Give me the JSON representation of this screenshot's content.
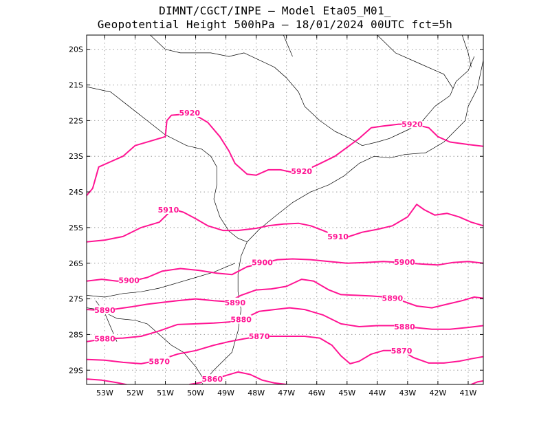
{
  "title_line1": "DIMNT/CGCT/INPE –  Model Eta05_M01_",
  "title_line2": "Geopotential Height 500hPa –  18/01/2024 00UTC fct=5h",
  "colors": {
    "contour": "#ff1493",
    "frame": "#000000",
    "grid": "#9a9a9a",
    "coast": "#000000"
  },
  "map": {
    "lon_range": [
      -53.6,
      -40.5
    ],
    "lat_range": [
      -29.4,
      -19.6
    ],
    "lat_ticks": [
      {
        "value": -20,
        "label": "20S"
      },
      {
        "value": -21,
        "label": "21S"
      },
      {
        "value": -22,
        "label": "22S"
      },
      {
        "value": -23,
        "label": "23S"
      },
      {
        "value": -24,
        "label": "24S"
      },
      {
        "value": -25,
        "label": "25S"
      },
      {
        "value": -26,
        "label": "26S"
      },
      {
        "value": -27,
        "label": "27S"
      },
      {
        "value": -28,
        "label": "28S"
      },
      {
        "value": -29,
        "label": "29S"
      }
    ],
    "lon_ticks": [
      {
        "value": -53,
        "label": "53W"
      },
      {
        "value": -52,
        "label": "52W"
      },
      {
        "value": -51,
        "label": "51W"
      },
      {
        "value": -50,
        "label": "50W"
      },
      {
        "value": -49,
        "label": "49W"
      },
      {
        "value": -48,
        "label": "48W"
      },
      {
        "value": -47,
        "label": "47W"
      },
      {
        "value": -46,
        "label": "46W"
      },
      {
        "value": -45,
        "label": "45W"
      },
      {
        "value": -44,
        "label": "44W"
      },
      {
        "value": -43,
        "label": "43W"
      },
      {
        "value": -42,
        "label": "42W"
      },
      {
        "value": -41,
        "label": "41W"
      }
    ],
    "grid": true
  },
  "contours": [
    {
      "level": 5920,
      "points": [
        [
          -53.6,
          -24.1
        ],
        [
          -53.4,
          -23.9
        ],
        [
          -53.2,
          -23.3
        ],
        [
          -52.8,
          -23.15
        ],
        [
          -52.4,
          -23.0
        ],
        [
          -52.0,
          -22.7
        ],
        [
          -51.4,
          -22.55
        ],
        [
          -51.0,
          -22.45
        ],
        [
          -50.95,
          -22.0
        ],
        [
          -50.8,
          -21.85
        ],
        [
          -50.4,
          -21.82
        ],
        [
          -50.0,
          -21.85
        ],
        [
          -49.6,
          -22.05
        ],
        [
          -49.2,
          -22.45
        ],
        [
          -48.9,
          -22.85
        ],
        [
          -48.7,
          -23.2
        ],
        [
          -48.3,
          -23.5
        ],
        [
          -48.0,
          -23.53
        ],
        [
          -47.6,
          -23.38
        ],
        [
          -47.2,
          -23.38
        ],
        [
          -46.8,
          -23.45
        ],
        [
          -46.4,
          -23.4
        ],
        [
          -46.0,
          -23.25
        ],
        [
          -45.4,
          -23.0
        ],
        [
          -45.0,
          -22.75
        ],
        [
          -44.6,
          -22.5
        ],
        [
          -44.2,
          -22.2
        ],
        [
          -43.8,
          -22.15
        ],
        [
          -43.3,
          -22.1
        ],
        [
          -42.8,
          -22.1
        ],
        [
          -42.3,
          -22.2
        ],
        [
          -42.0,
          -22.45
        ],
        [
          -41.6,
          -22.6
        ],
        [
          -41.0,
          -22.67
        ],
        [
          -40.5,
          -22.72
        ]
      ],
      "labels": [
        {
          "text": "5920",
          "lon": -50.2,
          "lat": -21.78
        },
        {
          "text": "5920",
          "lon": -46.5,
          "lat": -23.42
        },
        {
          "text": "5920",
          "lon": -42.85,
          "lat": -22.1
        }
      ]
    },
    {
      "level": 5910,
      "points": [
        [
          -53.6,
          -25.4
        ],
        [
          -53.0,
          -25.35
        ],
        [
          -52.4,
          -25.25
        ],
        [
          -51.8,
          -25.0
        ],
        [
          -51.2,
          -24.85
        ],
        [
          -50.9,
          -24.6
        ],
        [
          -50.7,
          -24.5
        ],
        [
          -50.4,
          -24.57
        ],
        [
          -50.0,
          -24.75
        ],
        [
          -49.6,
          -24.95
        ],
        [
          -49.1,
          -25.08
        ],
        [
          -48.6,
          -25.08
        ],
        [
          -48.0,
          -25.02
        ],
        [
          -47.6,
          -24.95
        ],
        [
          -47.1,
          -24.9
        ],
        [
          -46.6,
          -24.88
        ],
        [
          -46.2,
          -24.95
        ],
        [
          -45.8,
          -25.08
        ],
        [
          -45.4,
          -25.22
        ],
        [
          -45.0,
          -25.27
        ],
        [
          -44.5,
          -25.13
        ],
        [
          -44.0,
          -25.05
        ],
        [
          -43.5,
          -24.95
        ],
        [
          -43.0,
          -24.7
        ],
        [
          -42.7,
          -24.35
        ],
        [
          -42.45,
          -24.5
        ],
        [
          -42.1,
          -24.65
        ],
        [
          -41.7,
          -24.6
        ],
        [
          -41.3,
          -24.7
        ],
        [
          -40.9,
          -24.85
        ],
        [
          -40.5,
          -24.95
        ]
      ],
      "labels": [
        {
          "text": "5910",
          "lon": -50.9,
          "lat": -24.5
        },
        {
          "text": "5910",
          "lon": -45.3,
          "lat": -25.25
        }
      ]
    },
    {
      "level": 5900,
      "points": [
        [
          -53.6,
          -26.5
        ],
        [
          -53.1,
          -26.45
        ],
        [
          -52.6,
          -26.5
        ],
        [
          -52.1,
          -26.5
        ],
        [
          -51.6,
          -26.4
        ],
        [
          -51.1,
          -26.22
        ],
        [
          -50.5,
          -26.15
        ],
        [
          -49.9,
          -26.2
        ],
        [
          -49.3,
          -26.28
        ],
        [
          -48.8,
          -26.32
        ],
        [
          -48.3,
          -26.1
        ],
        [
          -47.8,
          -26.0
        ],
        [
          -47.3,
          -25.9
        ],
        [
          -46.8,
          -25.88
        ],
        [
          -46.2,
          -25.9
        ],
        [
          -45.6,
          -25.95
        ],
        [
          -45.0,
          -26.0
        ],
        [
          -44.4,
          -25.98
        ],
        [
          -43.8,
          -25.95
        ],
        [
          -43.2,
          -25.98
        ],
        [
          -42.6,
          -26.02
        ],
        [
          -42.0,
          -26.05
        ],
        [
          -41.5,
          -25.98
        ],
        [
          -41.0,
          -25.95
        ],
        [
          -40.5,
          -26.0
        ]
      ],
      "labels": [
        {
          "text": "5900",
          "lon": -52.2,
          "lat": -26.48
        },
        {
          "text": "5900",
          "lon": -47.8,
          "lat": -25.98
        },
        {
          "text": "5900",
          "lon": -43.1,
          "lat": -25.97
        }
      ]
    },
    {
      "level": 5890,
      "points": [
        [
          -53.6,
          -27.3
        ],
        [
          -53.1,
          -27.32
        ],
        [
          -52.6,
          -27.28
        ],
        [
          -52.1,
          -27.22
        ],
        [
          -51.6,
          -27.15
        ],
        [
          -51.1,
          -27.1
        ],
        [
          -50.6,
          -27.05
        ],
        [
          -50.0,
          -27.0
        ],
        [
          -49.4,
          -27.05
        ],
        [
          -48.9,
          -27.08
        ],
        [
          -48.5,
          -26.9
        ],
        [
          -48.0,
          -26.75
        ],
        [
          -47.5,
          -26.72
        ],
        [
          -47.0,
          -26.65
        ],
        [
          -46.5,
          -26.45
        ],
        [
          -46.1,
          -26.5
        ],
        [
          -45.6,
          -26.75
        ],
        [
          -45.2,
          -26.88
        ],
        [
          -44.7,
          -26.9
        ],
        [
          -44.2,
          -26.92
        ],
        [
          -43.7,
          -26.95
        ],
        [
          -43.2,
          -27.05
        ],
        [
          -42.7,
          -27.2
        ],
        [
          -42.2,
          -27.25
        ],
        [
          -41.7,
          -27.15
        ],
        [
          -41.2,
          -27.05
        ],
        [
          -40.8,
          -26.95
        ],
        [
          -40.5,
          -26.98
        ]
      ],
      "labels": [
        {
          "text": "5890",
          "lon": -53.0,
          "lat": -27.32
        },
        {
          "text": "5890",
          "lon": -48.7,
          "lat": -27.1
        },
        {
          "text": "5890",
          "lon": -43.5,
          "lat": -26.98
        }
      ]
    },
    {
      "level": 5880,
      "points": [
        [
          -53.6,
          -28.2
        ],
        [
          -53.0,
          -28.12
        ],
        [
          -52.4,
          -28.1
        ],
        [
          -51.8,
          -28.05
        ],
        [
          -51.2,
          -27.9
        ],
        [
          -50.6,
          -27.72
        ],
        [
          -50.0,
          -27.7
        ],
        [
          -49.4,
          -27.68
        ],
        [
          -48.9,
          -27.65
        ],
        [
          -48.4,
          -27.55
        ],
        [
          -47.9,
          -27.35
        ],
        [
          -47.4,
          -27.3
        ],
        [
          -46.9,
          -27.25
        ],
        [
          -46.4,
          -27.3
        ],
        [
          -45.8,
          -27.45
        ],
        [
          -45.2,
          -27.7
        ],
        [
          -44.6,
          -27.78
        ],
        [
          -44.0,
          -27.75
        ],
        [
          -43.4,
          -27.75
        ],
        [
          -42.8,
          -27.8
        ],
        [
          -42.2,
          -27.85
        ],
        [
          -41.6,
          -27.85
        ],
        [
          -41.0,
          -27.8
        ],
        [
          -40.5,
          -27.75
        ]
      ],
      "labels": [
        {
          "text": "5880",
          "lon": -53.0,
          "lat": -28.12
        },
        {
          "text": "5880",
          "lon": -48.5,
          "lat": -27.58
        },
        {
          "text": "5880",
          "lon": -43.1,
          "lat": -27.78
        }
      ]
    },
    {
      "level": 5870,
      "points": [
        [
          -53.6,
          -28.7
        ],
        [
          -53.0,
          -28.72
        ],
        [
          -52.4,
          -28.78
        ],
        [
          -51.8,
          -28.82
        ],
        [
          -51.2,
          -28.72
        ],
        [
          -50.6,
          -28.55
        ],
        [
          -50.0,
          -28.45
        ],
        [
          -49.4,
          -28.3
        ],
        [
          -48.9,
          -28.2
        ],
        [
          -48.4,
          -28.12
        ],
        [
          -47.9,
          -28.05
        ],
        [
          -47.4,
          -28.05
        ],
        [
          -46.9,
          -28.05
        ],
        [
          -46.4,
          -28.05
        ],
        [
          -45.9,
          -28.1
        ],
        [
          -45.5,
          -28.3
        ],
        [
          -45.2,
          -28.6
        ],
        [
          -44.9,
          -28.82
        ],
        [
          -44.6,
          -28.75
        ],
        [
          -44.2,
          -28.55
        ],
        [
          -43.8,
          -28.45
        ],
        [
          -43.2,
          -28.45
        ],
        [
          -42.8,
          -28.65
        ],
        [
          -42.3,
          -28.8
        ],
        [
          -41.8,
          -28.8
        ],
        [
          -41.3,
          -28.75
        ],
        [
          -40.9,
          -28.68
        ],
        [
          -40.5,
          -28.62
        ]
      ],
      "labels": [
        {
          "text": "5870",
          "lon": -51.2,
          "lat": -28.75
        },
        {
          "text": "5870",
          "lon": -47.9,
          "lat": -28.05
        },
        {
          "text": "5870",
          "lon": -43.2,
          "lat": -28.45
        }
      ]
    },
    {
      "level": 5860,
      "points": [
        [
          -53.6,
          -29.25
        ],
        [
          -53.1,
          -29.28
        ],
        [
          -52.6,
          -29.35
        ],
        [
          -52.2,
          -29.42
        ]
      ],
      "labels": []
    },
    {
      "level": 5860,
      "points": [
        [
          -50.2,
          -29.4
        ],
        [
          -49.7,
          -29.33
        ],
        [
          -49.2,
          -29.2
        ],
        [
          -48.6,
          -29.05
        ],
        [
          -48.2,
          -29.12
        ],
        [
          -47.8,
          -29.28
        ],
        [
          -47.4,
          -29.36
        ],
        [
          -47.0,
          -29.4
        ]
      ],
      "labels": [
        {
          "text": "5860",
          "lon": -49.45,
          "lat": -29.25
        }
      ]
    },
    {
      "level": 5860,
      "points": [
        [
          -40.9,
          -29.4
        ],
        [
          -40.7,
          -29.33
        ],
        [
          -40.5,
          -29.3
        ]
      ],
      "labels": []
    }
  ],
  "coastlines": [
    [
      [
        -40.5,
        -20.3
      ],
      [
        -40.7,
        -21.1
      ],
      [
        -41.0,
        -21.6
      ],
      [
        -41.1,
        -22.0
      ],
      [
        -41.8,
        -22.6
      ],
      [
        -42.4,
        -22.9
      ],
      [
        -43.1,
        -22.95
      ],
      [
        -43.6,
        -23.05
      ],
      [
        -44.1,
        -23.0
      ],
      [
        -44.6,
        -23.2
      ],
      [
        -45.1,
        -23.55
      ],
      [
        -45.6,
        -23.8
      ],
      [
        -46.2,
        -24.0
      ],
      [
        -46.8,
        -24.3
      ],
      [
        -47.4,
        -24.7
      ],
      [
        -47.9,
        -25.05
      ],
      [
        -48.3,
        -25.4
      ],
      [
        -48.5,
        -25.8
      ],
      [
        -48.6,
        -26.3
      ],
      [
        -48.6,
        -26.8
      ],
      [
        -48.5,
        -27.3
      ],
      [
        -48.6,
        -27.9
      ],
      [
        -48.8,
        -28.5
      ],
      [
        -49.4,
        -29.0
      ],
      [
        -49.8,
        -29.4
      ]
    ],
    [
      [
        -53.6,
        -26.9
      ],
      [
        -53.0,
        -26.95
      ],
      [
        -52.4,
        -26.85
      ],
      [
        -51.8,
        -26.8
      ],
      [
        -51.2,
        -26.7
      ],
      [
        -50.6,
        -26.55
      ],
      [
        -50.0,
        -26.4
      ],
      [
        -49.4,
        -26.25
      ],
      [
        -48.7,
        -26.0
      ]
    ],
    [
      [
        -53.6,
        -27.25
      ],
      [
        -53.2,
        -27.3
      ],
      [
        -52.6,
        -27.55
      ],
      [
        -52.0,
        -27.6
      ],
      [
        -51.6,
        -27.7
      ],
      [
        -51.2,
        -28.0
      ],
      [
        -50.8,
        -28.3
      ],
      [
        -50.4,
        -28.5
      ],
      [
        -50.0,
        -28.9
      ],
      [
        -49.7,
        -29.3
      ]
    ],
    [
      [
        -53.3,
        -27.05
      ],
      [
        -53.0,
        -27.4
      ],
      [
        -52.8,
        -27.8
      ],
      [
        -52.6,
        -28.2
      ]
    ],
    [
      [
        -53.6,
        -21.05
      ],
      [
        -52.8,
        -21.2
      ],
      [
        -52.2,
        -21.6
      ],
      [
        -51.6,
        -22.0
      ],
      [
        -51.0,
        -22.4
      ],
      [
        -50.3,
        -22.7
      ],
      [
        -49.8,
        -22.8
      ],
      [
        -49.5,
        -23.0
      ],
      [
        -49.3,
        -23.3
      ],
      [
        -49.3,
        -23.8
      ],
      [
        -49.4,
        -24.2
      ],
      [
        -49.2,
        -24.7
      ],
      [
        -48.9,
        -25.1
      ],
      [
        -48.6,
        -25.3
      ],
      [
        -48.3,
        -25.4
      ]
    ],
    [
      [
        -51.5,
        -19.6
      ],
      [
        -51.0,
        -20.0
      ],
      [
        -50.5,
        -20.1
      ],
      [
        -50.0,
        -20.1
      ],
      [
        -49.5,
        -20.1
      ],
      [
        -48.9,
        -20.2
      ],
      [
        -48.4,
        -20.1
      ],
      [
        -47.9,
        -20.3
      ],
      [
        -47.4,
        -20.5
      ],
      [
        -47.0,
        -20.8
      ],
      [
        -46.6,
        -21.2
      ],
      [
        -46.4,
        -21.6
      ],
      [
        -45.9,
        -22.0
      ],
      [
        -45.4,
        -22.3
      ],
      [
        -44.9,
        -22.5
      ],
      [
        -44.5,
        -22.7
      ],
      [
        -44.0,
        -22.6
      ],
      [
        -43.6,
        -22.5
      ],
      [
        -43.1,
        -22.3
      ],
      [
        -42.6,
        -22.1
      ],
      [
        -42.1,
        -21.6
      ],
      [
        -41.6,
        -21.3
      ],
      [
        -41.4,
        -20.9
      ],
      [
        -41.0,
        -20.6
      ],
      [
        -40.8,
        -20.2
      ]
    ],
    [
      [
        -47.1,
        -19.6
      ],
      [
        -46.9,
        -20.0
      ],
      [
        -46.8,
        -20.2
      ]
    ],
    [
      [
        -44.0,
        -19.6
      ],
      [
        -43.4,
        -20.1
      ],
      [
        -42.6,
        -20.4
      ],
      [
        -41.8,
        -20.7
      ],
      [
        -41.5,
        -21.1
      ]
    ],
    [
      [
        -41.2,
        -19.6
      ],
      [
        -41.0,
        -20.1
      ],
      [
        -40.9,
        -20.5
      ]
    ]
  ]
}
